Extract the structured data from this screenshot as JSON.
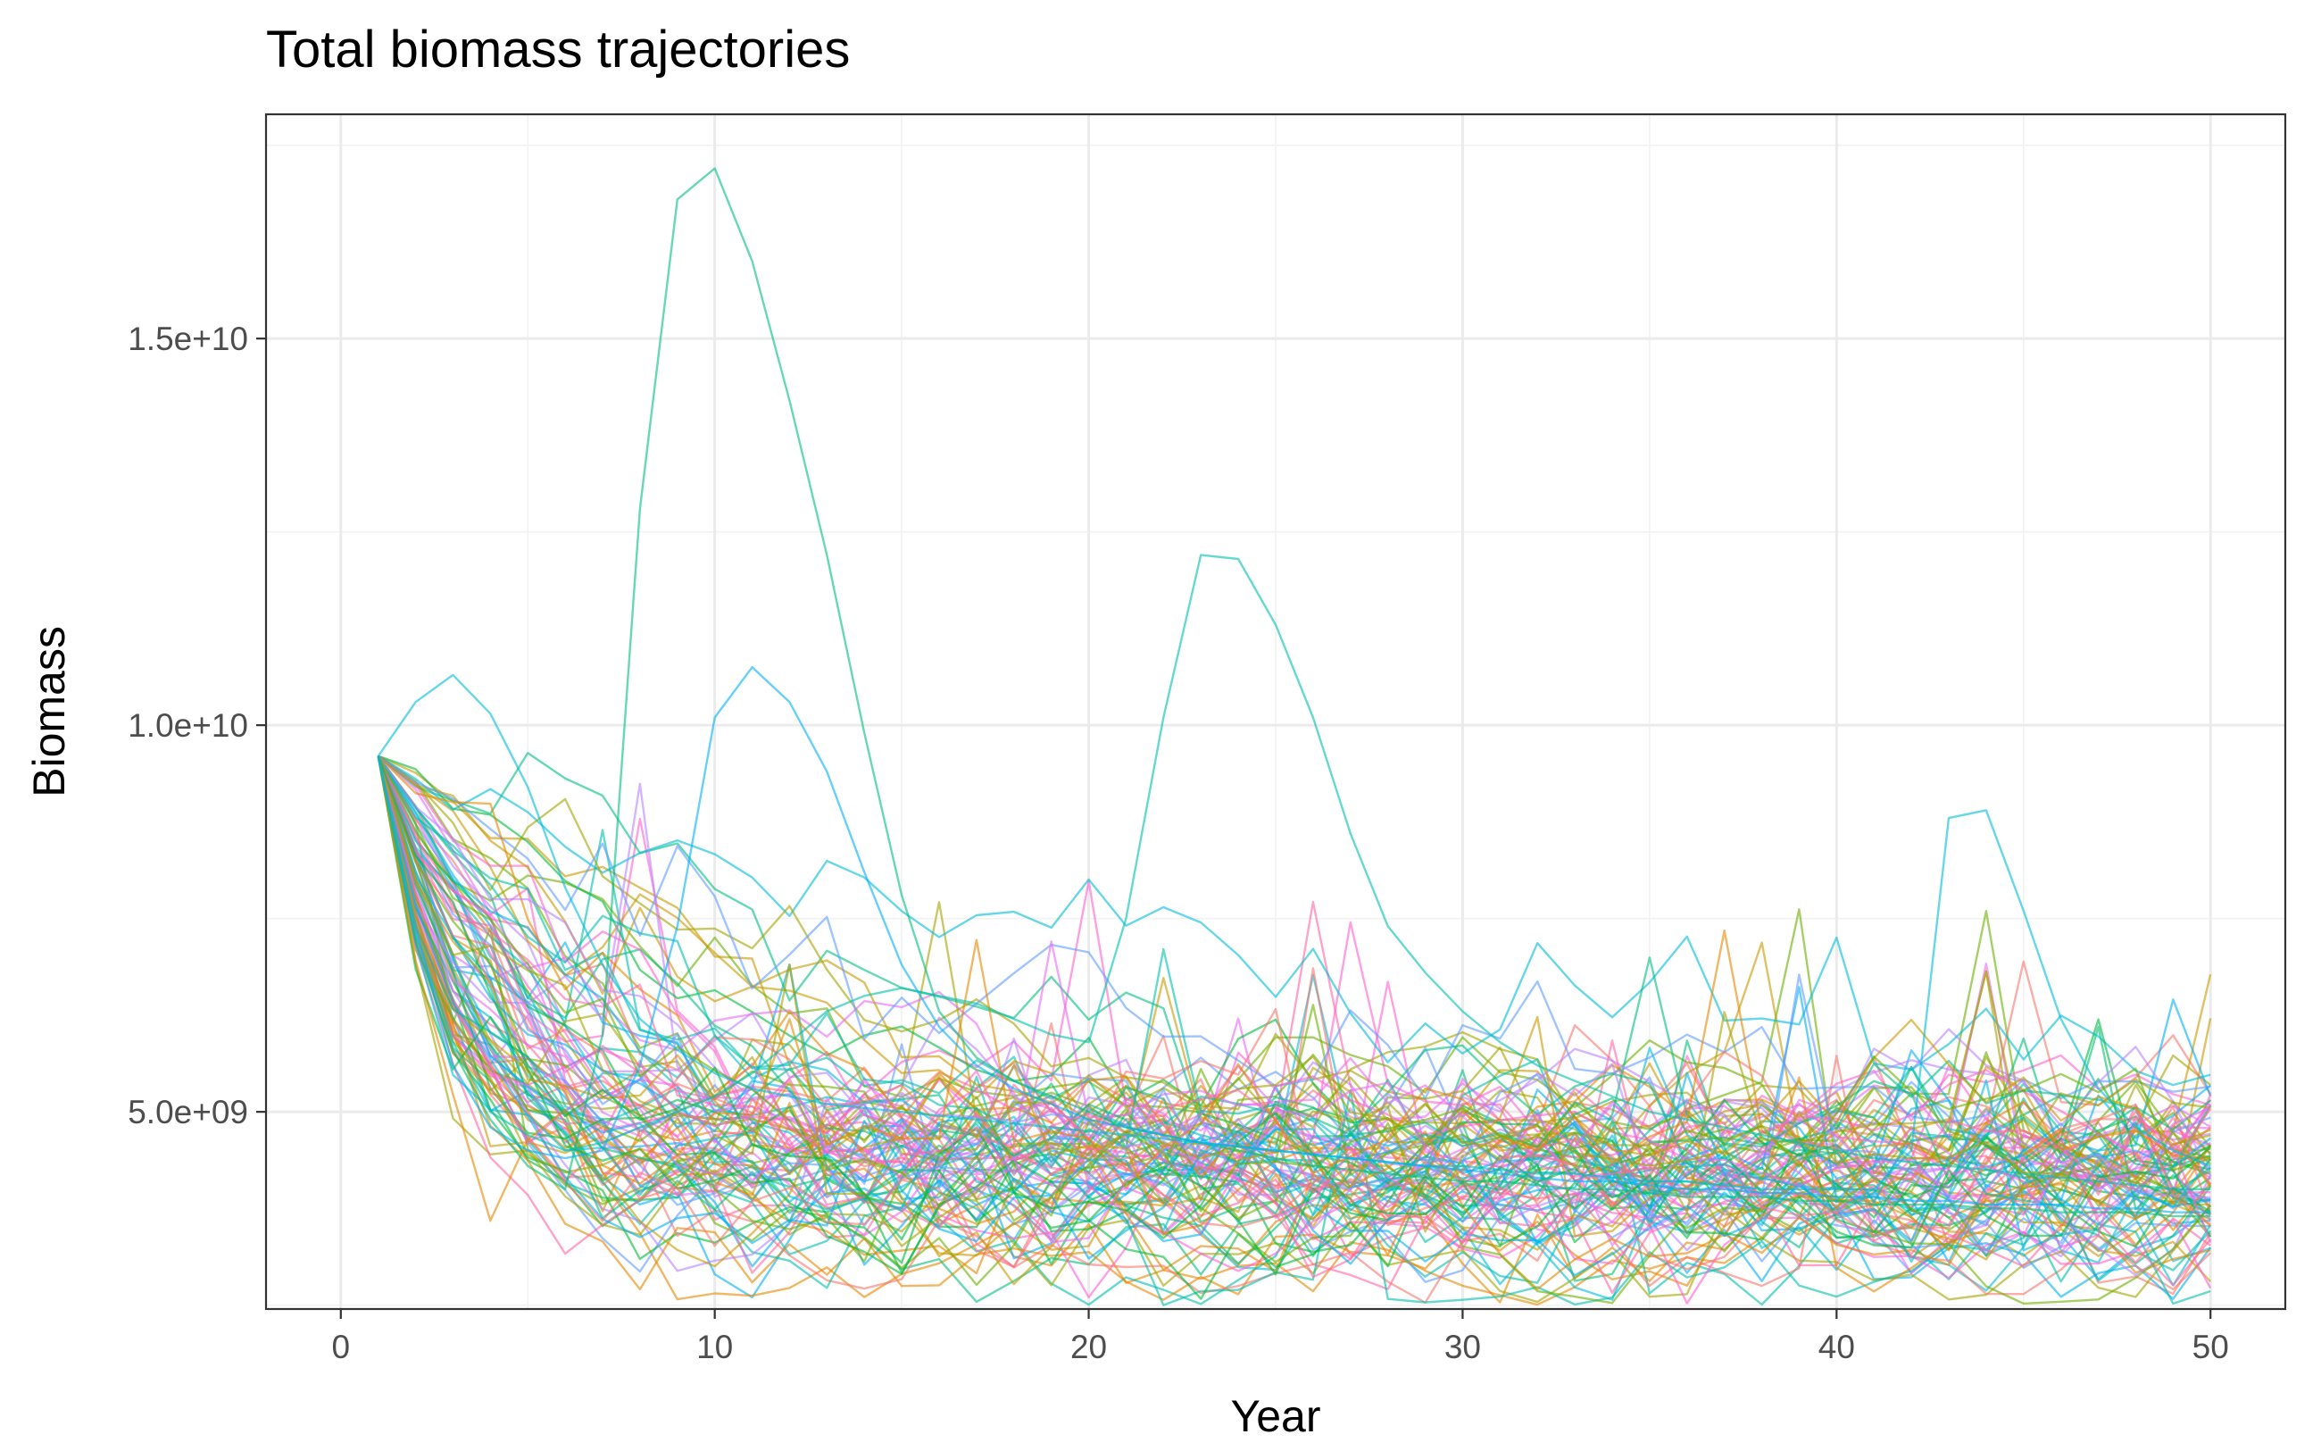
{
  "chart_data": {
    "type": "line",
    "title": "Total biomass trajectories",
    "xlabel": "Year",
    "ylabel": "Biomass",
    "xlim": [
      -2,
      52
    ],
    "ylim": [
      2450000000,
      17900000000
    ],
    "x_ticks": [
      0,
      10,
      20,
      30,
      40,
      50
    ],
    "x_tick_labels": [
      "0",
      "10",
      "20",
      "30",
      "40",
      "50"
    ],
    "y_ticks": [
      5000000000,
      10000000000,
      15000000000
    ],
    "y_tick_labels": [
      "5.0e+09",
      "1.0e+10",
      "1.5e+10"
    ],
    "grid": true,
    "legend": "none",
    "line_opacity": 0.6,
    "colors": [
      "#F8766D",
      "#E58700",
      "#C99800",
      "#A3A500",
      "#6BB100",
      "#00BA38",
      "#00BF7D",
      "#00C0AF",
      "#00BCD8",
      "#00B0F6",
      "#619CFF",
      "#B983FF",
      "#E76BF3",
      "#FD61D1",
      "#FF67A4"
    ],
    "series_count": 100,
    "series_seed": 20240517,
    "x": [
      1,
      2,
      3,
      4,
      5,
      6,
      7,
      8,
      9,
      10,
      11,
      12,
      13,
      14,
      15,
      16,
      17,
      18,
      19,
      20,
      21,
      22,
      23,
      24,
      25,
      26,
      27,
      28,
      29,
      30,
      31,
      32,
      33,
      34,
      35,
      36,
      37,
      38,
      39,
      40,
      41,
      42,
      43,
      44,
      45,
      46,
      47,
      48,
      49,
      50
    ],
    "series": [
      {
        "values": [
          9600000000,
          7200000000,
          5800000000,
          4900000000,
          4300000000,
          4000000000,
          6000000000,
          12800000000,
          16800000000,
          17200000000,
          16000000000,
          14200000000,
          12200000000,
          9900000000,
          7800000000,
          6300000000,
          5700000000,
          5400000000,
          5200000000,
          5000000000,
          4800000000,
          4700000000,
          4600000000,
          4500000000,
          4400000000,
          4300000000,
          4250000000,
          4200000000,
          4150000000,
          4100000000,
          4100000000,
          4050000000,
          4000000000,
          4000000000,
          3950000000,
          3900000000,
          3900000000,
          3900000000,
          3850000000,
          3850000000,
          3800000000,
          3800000000,
          3800000000,
          3750000000,
          3750000000,
          3700000000,
          3700000000,
          3700000000,
          3650000000,
          3650000000
        ]
      },
      {
        "values": [
          9600000000,
          7300000000,
          5900000000,
          5000000000,
          4700000000,
          4500000000,
          4600000000,
          4800000000,
          5000000000,
          5200000000,
          5500000000,
          5900000000,
          6300000000,
          6500000000,
          6600000000,
          6500000000,
          6400000000,
          6200000000,
          6000000000,
          5900000000,
          7500000000,
          10100000000,
          12200000000,
          12150000000,
          11300000000,
          10100000000,
          8600000000,
          7400000000,
          6800000000,
          6300000000,
          5900000000,
          5600000000,
          5400000000,
          5200000000,
          5000000000,
          4900000000,
          4800000000,
          4700000000,
          4600000000,
          4500000000,
          4400000000,
          4350000000,
          4300000000,
          4250000000,
          4200000000,
          4150000000,
          4100000000,
          4050000000,
          4000000000,
          4000000000
        ]
      },
      {
        "values": [
          9600000000,
          10300000000,
          10650000000,
          10150000000,
          9200000000,
          7900000000,
          6900000000,
          6200000000,
          5800000000,
          5500000000,
          5300000000,
          5200000000,
          5100000000,
          5050000000,
          5000000000,
          4950000000,
          4900000000,
          4850000000,
          4800000000,
          4750000000,
          4700000000,
          4650000000,
          4600000000,
          4550000000,
          4500000000,
          4450000000,
          4400000000,
          4350000000,
          4300000000,
          4300000000,
          4250000000,
          4200000000,
          4200000000,
          4150000000,
          4100000000,
          4100000000,
          4050000000,
          4000000000,
          4000000000,
          4000000000,
          4000000000,
          4500000000,
          8800000000,
          8900000000,
          7600000000,
          6200000000,
          5300000000,
          4800000000,
          4500000000,
          4300000000
        ]
      },
      {
        "values": [
          9600000000,
          7400000000,
          5600000000,
          4800000000,
          4500000000,
          4400000000,
          4500000000,
          5600000000,
          7400000000,
          10100000000,
          10750000000,
          10300000000,
          9400000000,
          8100000000,
          6900000000,
          6100000000,
          5600000000,
          5300000000,
          5100000000,
          4900000000,
          4800000000,
          4700000000,
          4600000000,
          4550000000,
          4500000000,
          4450000000,
          4400000000,
          4350000000,
          4300000000,
          4250000000,
          4200000000,
          4150000000,
          4100000000,
          4100000000,
          4050000000,
          4000000000,
          4000000000,
          3950000000,
          3950000000,
          3900000000,
          3900000000,
          3850000000,
          3850000000,
          3800000000,
          3800000000,
          3800000000,
          3750000000,
          3750000000,
          3700000000,
          3700000000
        ]
      }
    ]
  }
}
